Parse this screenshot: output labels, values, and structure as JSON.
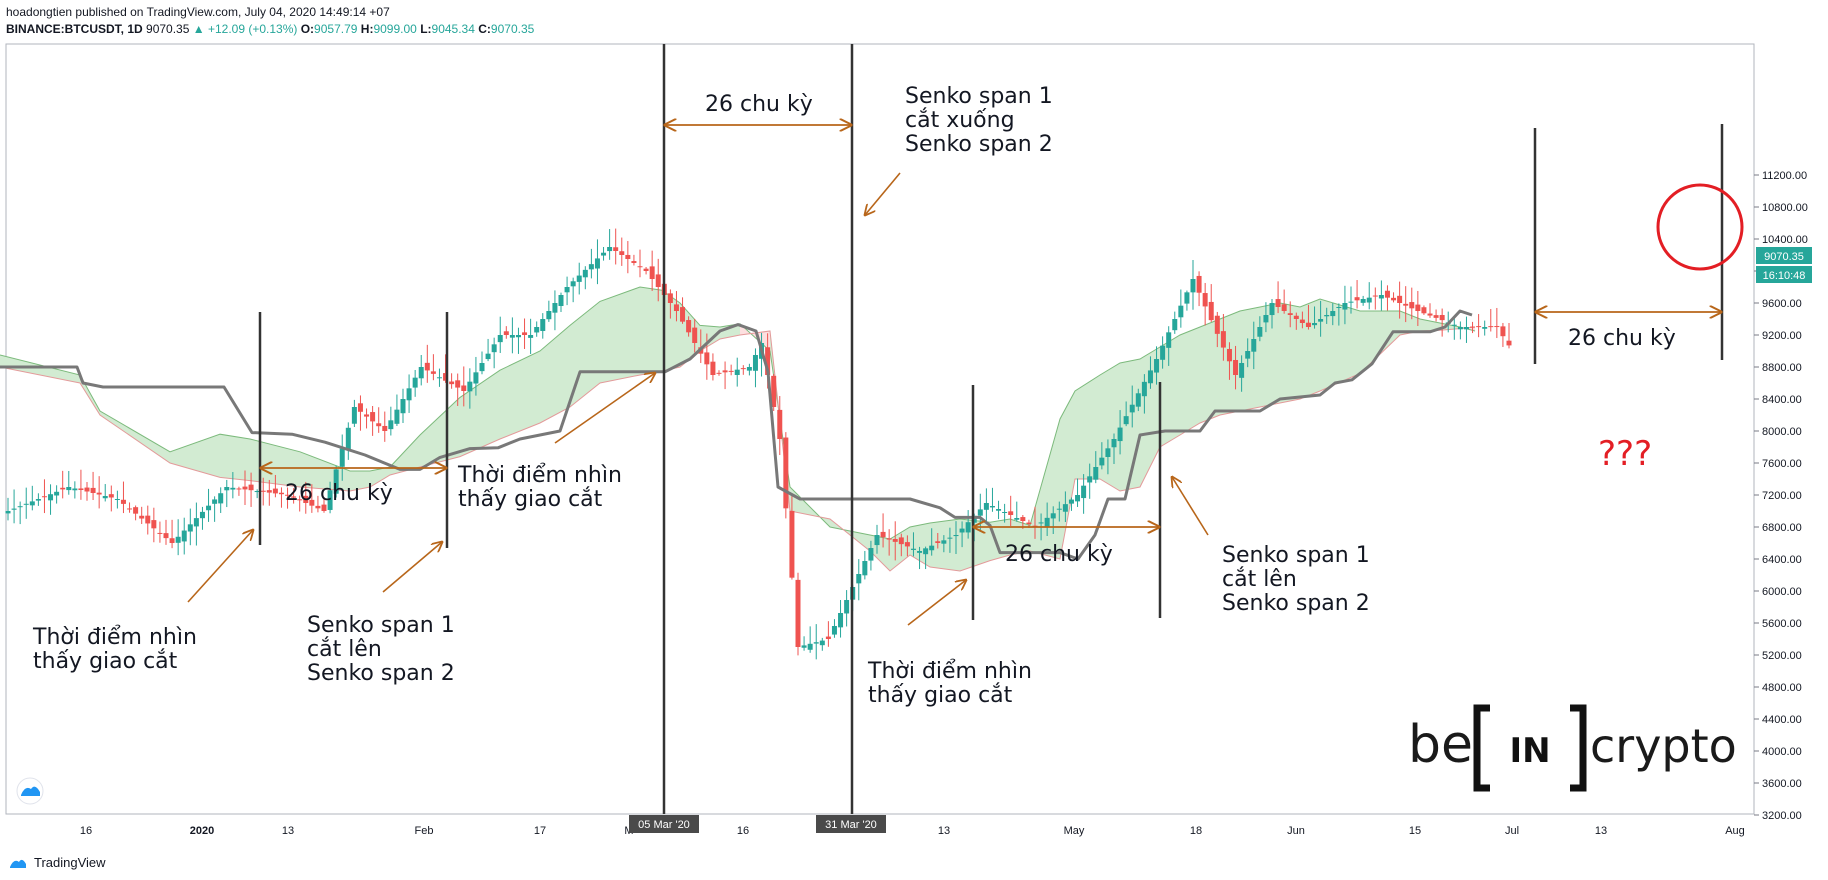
{
  "header": {
    "publish_line": "hoadongtien published on TradingView.com, July 04, 2020 14:49:14 +07",
    "symbol": "BINANCE:BTCUSDT, 1D",
    "last": "9070.35",
    "change": "▲ +12.09 (+0.13%)",
    "o_label": "O:",
    "o": "9057.79",
    "h_label": "H:",
    "h": "9099.00",
    "l_label": "L:",
    "l": "9045.34",
    "c_label": "C:",
    "c": "9070.35"
  },
  "price_badge": {
    "price": "9070.35",
    "countdown": "16:10:48"
  },
  "footer": {
    "brand": "TradingView"
  },
  "watermark": {
    "left": "be",
    "middle": "IN",
    "right": "crypto"
  },
  "colors": {
    "up": "#26a69a",
    "down": "#ef5350",
    "cloud_bull": "#d2ebd2",
    "cloud_bear": "#fde0e0",
    "kijun": "#787878",
    "arrow": "#b8661a",
    "circle": "#e31e24"
  },
  "chart_data": {
    "type": "candlestick",
    "symbol": "BINANCE:BTCUSDT",
    "timeframe": "1D",
    "y_ticks": [
      3200,
      3600,
      4000,
      4400,
      4800,
      5200,
      5600,
      6000,
      6400,
      6800,
      7200,
      7600,
      8000,
      8400,
      8800,
      9200,
      9600,
      10000,
      10400,
      10800,
      11200
    ],
    "y_tick_labels": [
      "3200.00",
      "3600.00",
      "4000.00",
      "4400.00",
      "4800.00",
      "5200.00",
      "5600.00",
      "6000.00",
      "6400.00",
      "6800.00",
      "7200.00",
      "7600.00",
      "8000.00",
      "8400.00",
      "8800.00",
      "9200.00",
      "9600.00",
      "10000.00",
      "10400.00",
      "10800.00",
      "11200.00"
    ],
    "x_ticks": [
      {
        "label": "16",
        "bold": false
      },
      {
        "label": "2020",
        "bold": true
      },
      {
        "label": "13",
        "bold": false
      },
      {
        "label": "Feb",
        "bold": false
      },
      {
        "label": "17",
        "bold": false
      },
      {
        "label": "M",
        "bold": false
      },
      {
        "label": "16",
        "bold": false
      },
      {
        "label": "13",
        "bold": false
      },
      {
        "label": "May",
        "bold": false
      },
      {
        "label": "18",
        "bold": false
      },
      {
        "label": "Jun",
        "bold": false
      },
      {
        "label": "15",
        "bold": false
      },
      {
        "label": "Jul",
        "bold": false
      },
      {
        "label": "13",
        "bold": false
      },
      {
        "label": "Aug",
        "bold": false
      }
    ],
    "x_markers": [
      "05 Mar '20",
      "31 Mar '20"
    ],
    "anchors": [
      {
        "p": 7000,
        "n": 7
      },
      {
        "p": 7300,
        "n": 10
      },
      {
        "p": 7150,
        "n": 8
      },
      {
        "p": 6600,
        "n": 9
      },
      {
        "p": 7300,
        "n": 9
      },
      {
        "p": 7200,
        "n": 10
      },
      {
        "p": 7000,
        "n": 6
      },
      {
        "p": 8300,
        "n": 5
      },
      {
        "p": 8000,
        "n": 5
      },
      {
        "p": 8800,
        "n": 6
      },
      {
        "p": 8500,
        "n": 7
      },
      {
        "p": 9200,
        "n": 6
      },
      {
        "p": 9200,
        "n": 5
      },
      {
        "p": 9800,
        "n": 6
      },
      {
        "p": 10300,
        "n": 7
      },
      {
        "p": 10000,
        "n": 6
      },
      {
        "p": 9500,
        "n": 5
      },
      {
        "p": 8700,
        "n": 6
      },
      {
        "p": 8800,
        "n": 6
      },
      {
        "p": 9100,
        "n": 2
      },
      {
        "p": 7900,
        "n": 3
      },
      {
        "p": 5300,
        "n": 3
      },
      {
        "p": 5400,
        "n": 5
      },
      {
        "p": 6700,
        "n": 8
      },
      {
        "p": 6500,
        "n": 7
      },
      {
        "p": 6700,
        "n": 6
      },
      {
        "p": 7100,
        "n": 5
      },
      {
        "p": 6800,
        "n": 8
      },
      {
        "p": 7200,
        "n": 7
      },
      {
        "p": 7900,
        "n": 6
      },
      {
        "p": 8900,
        "n": 7
      },
      {
        "p": 9900,
        "n": 6
      },
      {
        "p": 8700,
        "n": 7
      },
      {
        "p": 9600,
        "n": 6
      },
      {
        "p": 9300,
        "n": 6
      },
      {
        "p": 9600,
        "n": 6
      },
      {
        "p": 9700,
        "n": 6
      },
      {
        "p": 9500,
        "n": 6
      },
      {
        "p": 9300,
        "n": 7
      },
      {
        "p": 9300,
        "n": 6
      },
      {
        "p": 9070,
        "n": 2
      }
    ],
    "kijun": [
      [
        0,
        8800
      ],
      [
        77,
        8800
      ],
      [
        83,
        8600
      ],
      [
        103,
        8550
      ],
      [
        224,
        8550
      ],
      [
        252,
        7980
      ],
      [
        292,
        7960
      ],
      [
        325,
        7860
      ],
      [
        365,
        7700
      ],
      [
        400,
        7520
      ],
      [
        420,
        7520
      ],
      [
        440,
        7670
      ],
      [
        470,
        7780
      ],
      [
        498,
        7790
      ],
      [
        520,
        7900
      ],
      [
        560,
        8000
      ],
      [
        580,
        8740
      ],
      [
        600,
        8740
      ],
      [
        640,
        8740
      ],
      [
        665,
        8740
      ],
      [
        690,
        8900
      ],
      [
        720,
        9250
      ],
      [
        738,
        9330
      ],
      [
        756,
        9250
      ],
      [
        768,
        8740
      ],
      [
        778,
        7300
      ],
      [
        800,
        7150
      ],
      [
        854,
        7150
      ],
      [
        870,
        7150
      ],
      [
        910,
        7150
      ],
      [
        940,
        7040
      ],
      [
        955,
        6920
      ],
      [
        980,
        6920
      ],
      [
        990,
        6820
      ],
      [
        1000,
        6480
      ],
      [
        1060,
        6480
      ],
      [
        1078,
        6400
      ],
      [
        1095,
        6700
      ],
      [
        1108,
        7150
      ],
      [
        1125,
        7150
      ],
      [
        1140,
        7950
      ],
      [
        1165,
        8000
      ],
      [
        1200,
        8000
      ],
      [
        1215,
        8250
      ],
      [
        1260,
        8250
      ],
      [
        1280,
        8400
      ],
      [
        1320,
        8450
      ],
      [
        1335,
        8600
      ],
      [
        1352,
        8640
      ],
      [
        1372,
        8840
      ],
      [
        1393,
        9240
      ],
      [
        1430,
        9240
      ],
      [
        1445,
        9300
      ],
      [
        1460,
        9500
      ],
      [
        1472,
        9450
      ]
    ],
    "cloud": {
      "x": [
        0,
        80,
        100,
        170,
        220,
        250,
        300,
        350,
        370,
        390,
        420,
        460,
        500,
        540,
        570,
        600,
        640,
        662,
        680,
        700,
        720,
        740,
        770,
        790,
        830,
        870,
        890,
        910,
        930,
        960,
        990,
        1010,
        1030,
        1060,
        1075,
        1100,
        1120,
        1140,
        1160,
        1180,
        1200,
        1220,
        1240,
        1260,
        1280,
        1300,
        1320,
        1360,
        1400,
        1420,
        1440,
        1460,
        1475
      ],
      "a": [
        8950,
        8700,
        8250,
        7740,
        7960,
        7900,
        7740,
        7500,
        7500,
        7550,
        7950,
        8420,
        8760,
        9000,
        9320,
        9620,
        9800,
        9760,
        9600,
        9320,
        9300,
        9340,
        9000,
        7300,
        6800,
        6700,
        6650,
        6800,
        6850,
        6900,
        6860,
        6900,
        6820,
        8150,
        8500,
        8700,
        8850,
        8900,
        9050,
        9200,
        9300,
        9400,
        9500,
        9550,
        9600,
        9550,
        9650,
        9500,
        9500,
        9400,
        9350,
        9300,
        9250
      ],
      "b": [
        8800,
        8600,
        8200,
        7600,
        7420,
        7380,
        7300,
        7250,
        7300,
        7450,
        7550,
        7680,
        7900,
        8100,
        8300,
        8600,
        8700,
        8750,
        8800,
        9000,
        9150,
        9200,
        9250,
        7000,
        6900,
        6500,
        6250,
        6450,
        6300,
        6250,
        6380,
        6450,
        6500,
        6400,
        7400,
        7400,
        7250,
        7300,
        7800,
        7950,
        8100,
        8200,
        8250,
        8300,
        8350,
        8400,
        8500,
        8720,
        9200,
        9250,
        9260,
        9280,
        9300
      ]
    },
    "annotations": {
      "period_label": "26 chu kỳ",
      "cross_up": [
        "Senko span 1",
        "cắt lên",
        "Senko span 2"
      ],
      "cross_down": [
        "Senko span 1",
        "cắt xuống",
        "Senko span 2"
      ],
      "seen_cross": [
        "Thời điểm nhìn",
        "thấy giao cắt"
      ],
      "question": "???"
    }
  }
}
